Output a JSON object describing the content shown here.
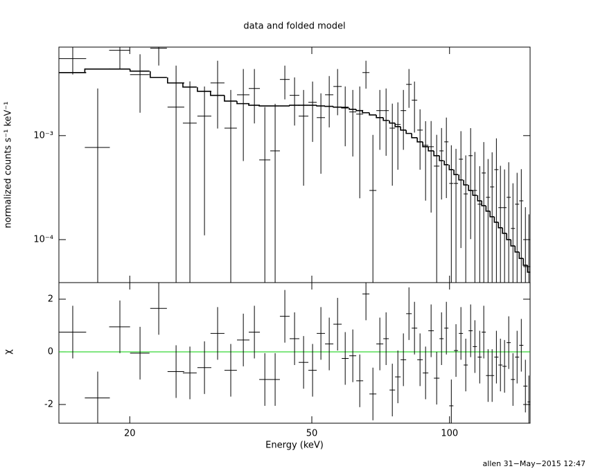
{
  "chart_data": [
    {
      "type": "spectrum",
      "title": "data and folded model",
      "ylabel": "normalized counts s⁻¹ keV⁻¹",
      "log_y": true,
      "log_x": true,
      "xlim": [
        14,
        150
      ],
      "xticks": [
        20,
        50,
        100
      ],
      "ylim": [
        3.86e-05,
        0.0071
      ],
      "yticks": [
        {
          "value": 0.001,
          "label": "10⁻³"
        },
        {
          "value": 0.0001,
          "label": "10⁻⁴"
        }
      ],
      "data_color": "#000000",
      "model_color": "#000000",
      "x": [
        15.01,
        17.02,
        19.03,
        21.06,
        23.14,
        25.25,
        27.07,
        29.13,
        31.12,
        33.25,
        35.42,
        37.45,
        39.47,
        41.57,
        43.65,
        45.84,
        47.97,
        50.19,
        52.34,
        54.58,
        56.92,
        59.15,
        61.45,
        63.64,
        65.66,
        68.0,
        70.41,
        72.66,
        74.98,
        77.1,
        79.28,
        81.53,
        83.83,
        86.2,
        88.64,
        91.14,
        93.73,
        96.05,
        98.42,
        100.9,
        103.3,
        105.9,
        108.5,
        111.2,
        113.6,
        116.4,
        118.8,
        121.4,
        123.9,
        126.6,
        129.2,
        131.9,
        134.7,
        137.6,
        140.5,
        143.5,
        146.5,
        149.1
      ],
      "xerr": [
        1.05,
        1.07,
        1.0,
        1.03,
        0.97,
        1.06,
        0.94,
        1.02,
        1.09,
        1.04,
        1.11,
        1.05,
        1.1,
        1.01,
        1.07,
        1.12,
        1.17,
        1.05,
        1.09,
        1.14,
        1.19,
        1.03,
        1.07,
        1.11,
        1.15,
        1.19,
        1.23,
        1.01,
        1.05,
        1.08,
        1.11,
        1.14,
        1.17,
        1.2,
        1.24,
        1.27,
        1.31,
        1.01,
        1.03,
        1.06,
        1.08,
        1.11,
        1.14,
        1.16,
        1.19,
        1.22,
        1.24,
        1.27,
        1.3,
        1.33,
        1.35,
        1.38,
        1.41,
        1.44,
        1.47,
        1.5,
        1.53,
        1.04
      ],
      "values": [
        0.0055,
        0.00077,
        0.00661,
        0.00386,
        0.00692,
        0.00188,
        0.00132,
        0.00154,
        0.00321,
        0.00118,
        0.00247,
        0.00284,
        0.000584,
        0.000713,
        0.00347,
        0.00244,
        0.00154,
        0.00209,
        0.00149,
        0.00247,
        0.00297,
        0.00188,
        0.00169,
        0.00161,
        0.00404,
        0.000297,
        0.00174,
        0.00174,
        0.00118,
        0.00128,
        0.00174,
        0.00311,
        0.00219,
        0.00113,
        0.000807,
        0.000782,
        0.000509,
        0.000713,
        0.000871,
        0.000347,
        0.000347,
        0.000593,
        0.000275,
        0.000641,
        0.000297,
        0.000219,
        0.000437,
        0.000255,
        0.000321,
        0.000471,
        0.000203,
        0.000203,
        0.000255,
        0.000128,
        0.000219,
        0.000236,
        5.5e-05,
        5.5e-05
      ],
      "errors": [
        0.00163,
        0.00207,
        0.0022,
        0.0022,
        0.0022,
        0.00283,
        0.002,
        0.00143,
        0.00204,
        0.00157,
        0.0019,
        0.00153,
        0.0013,
        0.00131,
        0.00124,
        0.00119,
        0.00121,
        0.00122,
        0.00106,
        0.00127,
        0.0014,
        0.00109,
        0.00106,
        0.00136,
        0.00121,
        0.00072,
        0.00101,
        0.0011,
        0.00085,
        0.00081,
        0.00101,
        0.00126,
        0.00112,
        0.00066,
        0.00057,
        0.0006,
        0.00051,
        0.00047,
        0.00062,
        0.00046,
        0.0004,
        0.00051,
        0.00037,
        0.00054,
        0.0004,
        0.00029,
        0.00043,
        0.00034,
        0.00037,
        0.00047,
        0.00031,
        0.00027,
        0.0003,
        0.00022,
        0.00022,
        0.00024,
        0.00015,
        0.00012
      ],
      "model_values": [
        0.00404,
        0.00437,
        0.00437,
        0.00417,
        0.00363,
        0.00321,
        0.00293,
        0.00267,
        0.00244,
        0.00215,
        0.00203,
        0.00196,
        0.00193,
        0.00193,
        0.00193,
        0.00196,
        0.00196,
        0.00196,
        0.00193,
        0.00191,
        0.00188,
        0.00185,
        0.00179,
        0.00174,
        0.00166,
        0.00158,
        0.00149,
        0.0014,
        0.00132,
        0.00122,
        0.00113,
        0.00105,
        0.000955,
        0.000871,
        0.000782,
        0.000713,
        0.000641,
        0.000575,
        0.000525,
        0.000471,
        0.000423,
        0.000375,
        0.000336,
        0.000297,
        0.000267,
        0.000236,
        0.000212,
        0.000188,
        0.000166,
        0.000147,
        0.00013,
        0.000115,
        0.0001,
        8.7e-05,
        7.6e-05,
        6.6e-05,
        5.67e-05,
        4.86e-05
      ]
    },
    {
      "type": "residual",
      "ylabel": "χ",
      "xlabel": "Energy (keV)",
      "xlim": [
        14,
        150
      ],
      "xticks": [
        20,
        50,
        100
      ],
      "ylim": [
        -2.71,
        2.63
      ],
      "yticks": [
        -2,
        0,
        2
      ],
      "zero_line_color": "#00cc00",
      "values": [
        0.75,
        -1.75,
        0.95,
        -0.05,
        1.65,
        -0.75,
        -0.8,
        -0.6,
        0.7,
        -0.7,
        0.45,
        0.75,
        -1.05,
        -1.05,
        1.35,
        0.5,
        -0.4,
        -0.7,
        0.7,
        0.3,
        1.05,
        -0.25,
        -0.15,
        -1.1,
        2.2,
        -1.6,
        0.3,
        0.5,
        -1.45,
        -0.95,
        -0.3,
        1.45,
        0.9,
        -0.3,
        -0.8,
        0.8,
        -1.0,
        0.5,
        0.9,
        -2.05,
        0.05,
        0.7,
        -0.5,
        0.8,
        0.2,
        -0.2,
        0.75,
        -0.9,
        -0.9,
        -0.2,
        -0.5,
        -0.55,
        0.35,
        -1.05,
        -0.2,
        0.25,
        -1.3,
        -1.9
      ],
      "errors": [
        1,
        1,
        1,
        1,
        1,
        1,
        1,
        1,
        1,
        1,
        1,
        1,
        1,
        1,
        1,
        1,
        1,
        1,
        1,
        1,
        1,
        1,
        1,
        1,
        1,
        1,
        1,
        1,
        1,
        1,
        1,
        1,
        1,
        1,
        1,
        1,
        1,
        1,
        1,
        1,
        1,
        1,
        1,
        1,
        1,
        1,
        1,
        1,
        1,
        1,
        1,
        1,
        1,
        1,
        1,
        1,
        1,
        1
      ]
    }
  ],
  "footer": "allen 31−May−2015 12:47"
}
